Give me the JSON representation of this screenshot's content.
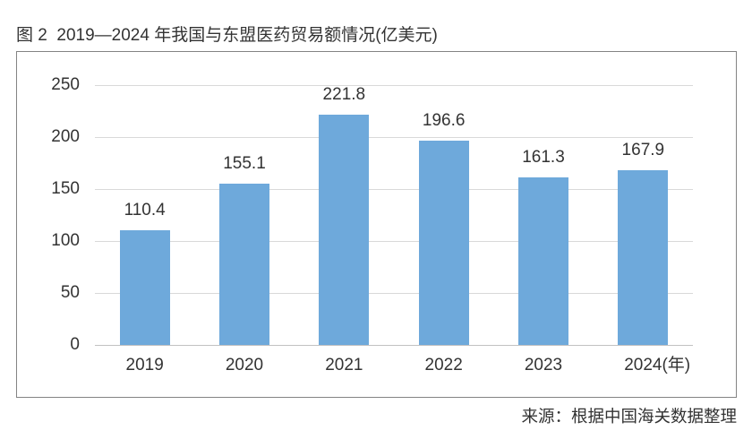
{
  "title": "图 2  2019—2024 年我国与东盟医药贸易额情况(亿美元)",
  "source_note": "来源：根据中国海关数据整理",
  "chart_data": {
    "type": "bar",
    "title": "图 2 2019—2024 年我国与东盟医药贸易额情况(亿美元)",
    "categories": [
      "2019",
      "2020",
      "2021",
      "2022",
      "2023",
      "2024"
    ],
    "values": [
      110.4,
      155.1,
      221.8,
      196.6,
      161.3,
      167.9
    ],
    "x_unit_suffix": "(年)",
    "xlabel": "",
    "ylabel": "",
    "ylim": [
      0,
      250
    ],
    "yticks": [
      0,
      50,
      100,
      150,
      200,
      250
    ],
    "grid": true,
    "legend": false,
    "bar_color": "#6ea9db",
    "source_note": "来源：根据中国海关数据整理"
  }
}
